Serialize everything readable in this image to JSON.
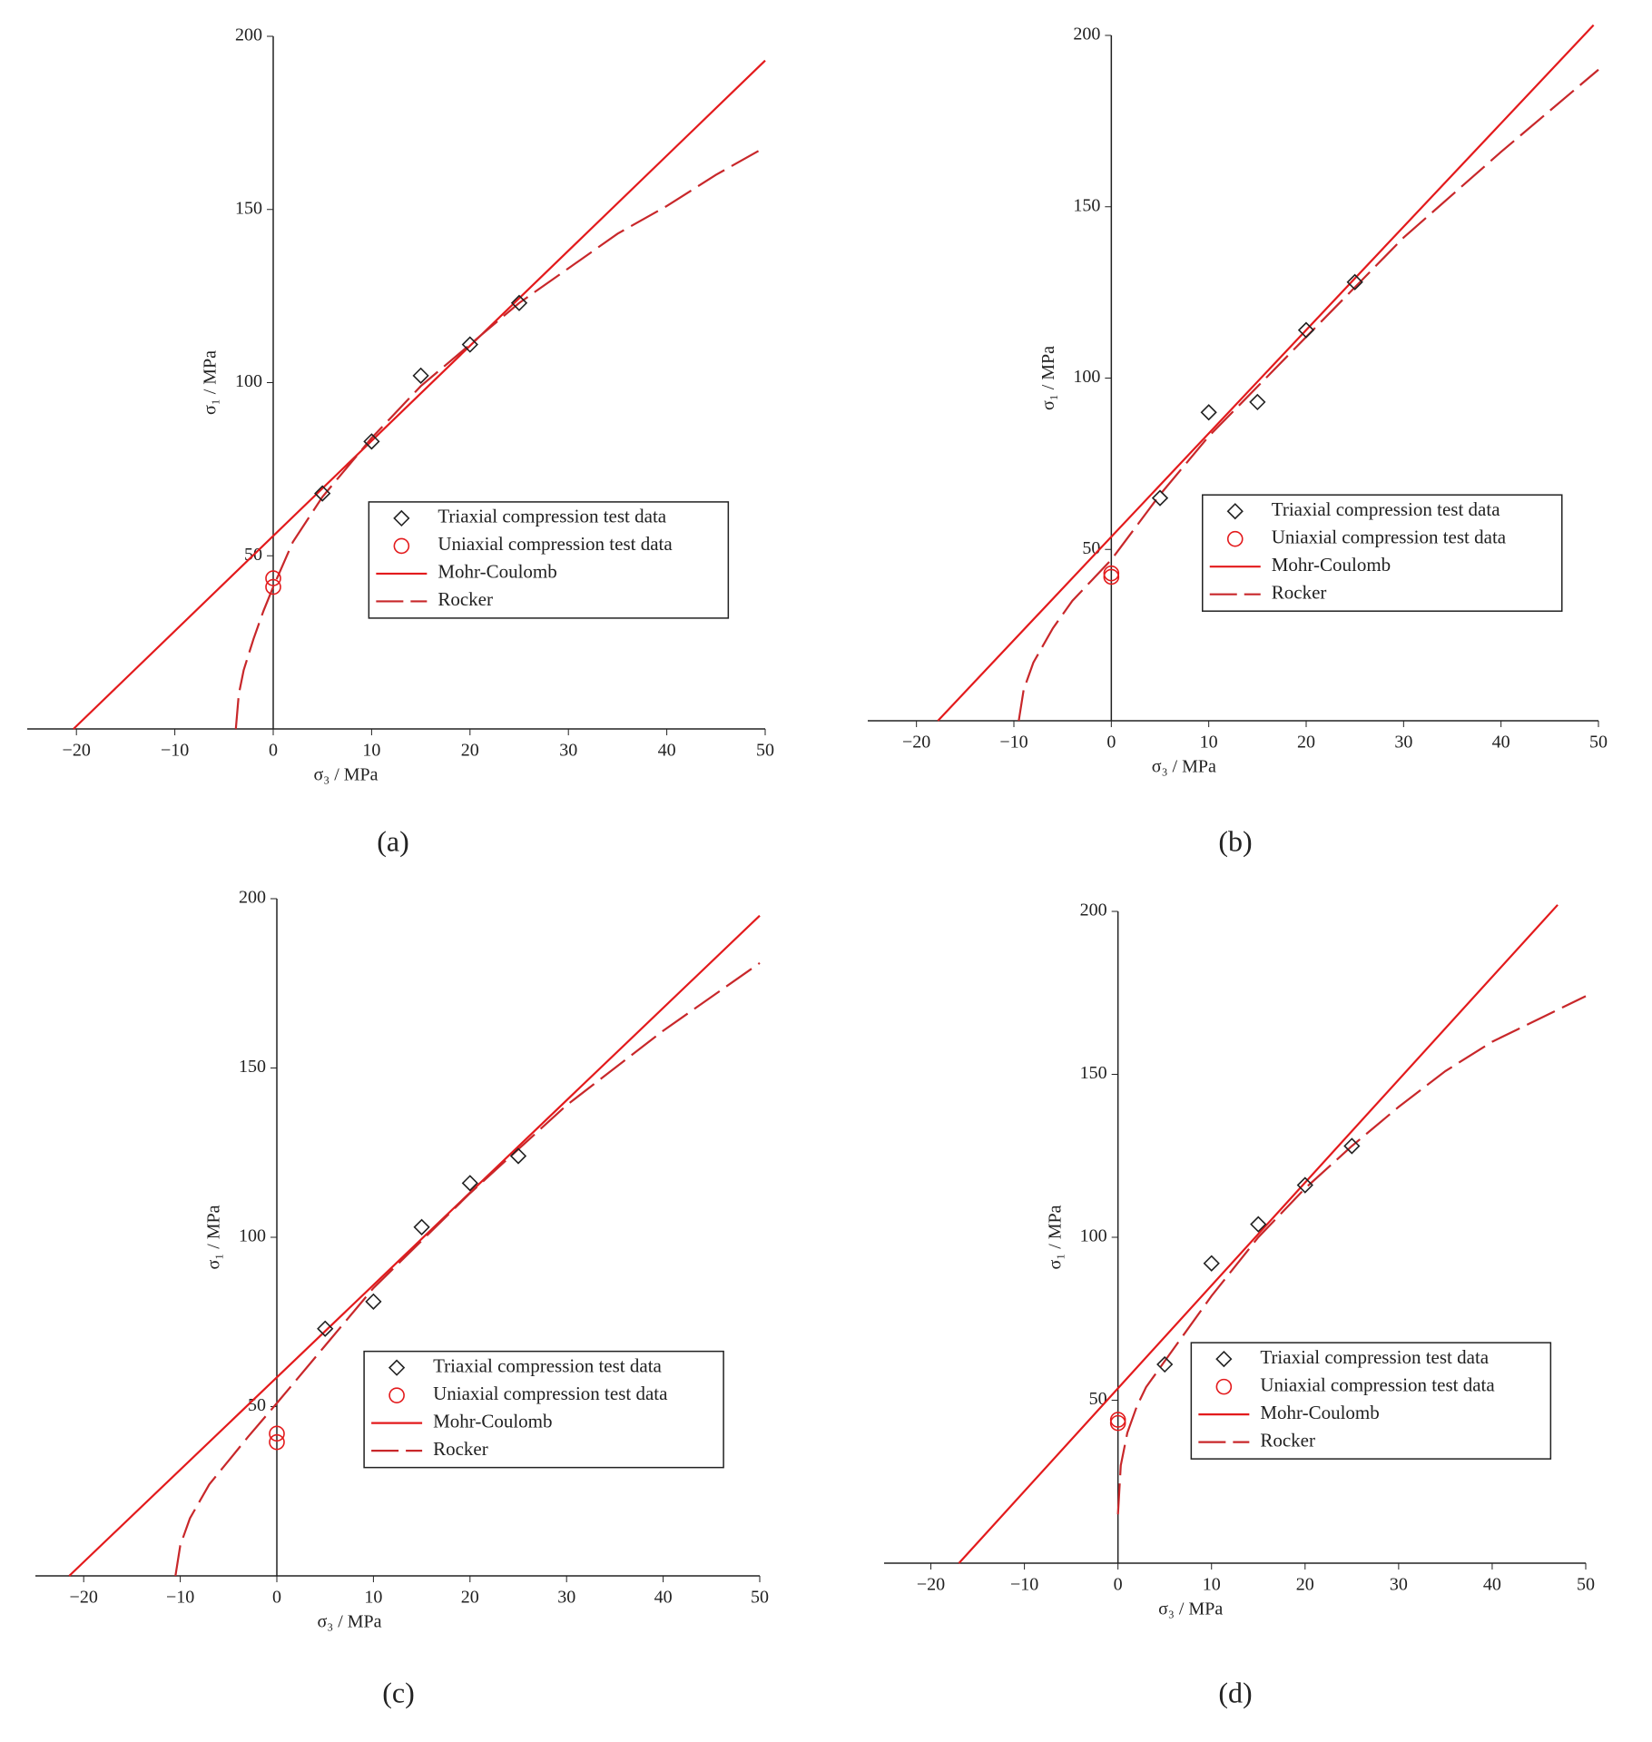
{
  "chart_data": [
    {
      "type": "scatter",
      "label": "(a)",
      "xlabel": "σ₃ / MPa",
      "ylabel": "σ₁ / MPa",
      "xlim": [
        -25,
        50
      ],
      "ylim": [
        0,
        200
      ],
      "xticks": [
        {
          "value": -20,
          "label": "−20"
        },
        {
          "value": -10,
          "label": "−10"
        },
        0,
        10,
        20,
        30,
        40,
        50
      ],
      "yticks": [
        50,
        100,
        150,
        200
      ],
      "legend": "lower right",
      "series": [
        {
          "name": "Triaxial compression test data",
          "color": "#222222",
          "marker": "diamond",
          "x": [
            5,
            10,
            15,
            20,
            25
          ],
          "values": [
            68,
            83,
            102,
            111,
            123
          ]
        },
        {
          "name": "Uniaxial compression test data",
          "color": "#e31a1c",
          "marker": "circle",
          "x": [
            0,
            0
          ],
          "values": [
            43.5,
            41
          ]
        },
        {
          "name": "Mohr-Coulomb",
          "color": "#e31a1c",
          "line": "solid",
          "x": [
            -20.3,
            50
          ],
          "values": [
            0,
            193
          ]
        },
        {
          "name": "Rocker",
          "color": "#c8272a",
          "line": "dashed",
          "x": [
            -3.8,
            -3.5,
            -3,
            -2,
            -1,
            0,
            2,
            5,
            10,
            15,
            20,
            25,
            30,
            35,
            40,
            45,
            50
          ],
          "values": [
            0,
            10,
            17,
            26,
            34,
            41,
            54,
            67,
            84,
            99,
            111,
            123,
            133,
            143,
            151,
            160,
            168
          ]
        }
      ]
    },
    {
      "type": "scatter",
      "label": "(b)",
      "xlabel": "σ₃ / MPa",
      "ylabel": "σ₁ / MPa",
      "xlim": [
        -25,
        50
      ],
      "ylim": [
        0,
        200
      ],
      "xticks": [
        {
          "value": -20,
          "label": "−20"
        },
        {
          "value": -10,
          "label": "−10"
        },
        0,
        10,
        20,
        30,
        40,
        50
      ],
      "yticks": [
        50,
        100,
        150,
        200
      ],
      "legend": "lower right",
      "series": [
        {
          "name": "Triaxial compression test data",
          "color": "#222222",
          "marker": "diamond",
          "x": [
            5,
            10,
            15,
            20,
            25
          ],
          "values": [
            65,
            90,
            93,
            114,
            128
          ]
        },
        {
          "name": "Uniaxial compression test data",
          "color": "#e31a1c",
          "marker": "circle",
          "x": [
            0,
            0
          ],
          "values": [
            43,
            42
          ]
        },
        {
          "name": "Mohr-Coulomb",
          "color": "#e31a1c",
          "line": "solid",
          "x": [
            -17.8,
            49.5
          ],
          "values": [
            0,
            203
          ]
        },
        {
          "name": "Rocker",
          "color": "#c8272a",
          "line": "dashed",
          "x": [
            -9.5,
            -9,
            -8,
            -6,
            -4,
            -2,
            0,
            5,
            10,
            20,
            30,
            40,
            50
          ],
          "values": [
            0,
            9,
            17,
            27,
            35,
            41,
            47,
            66,
            83,
            112,
            141,
            166,
            190
          ]
        }
      ]
    },
    {
      "type": "scatter",
      "label": "(c)",
      "xlabel": "σ₃ / MPa",
      "ylabel": "σ₁ / MPa",
      "xlim": [
        -25,
        50
      ],
      "ylim": [
        0,
        200
      ],
      "xticks": [
        {
          "value": -20,
          "label": "−20"
        },
        {
          "value": -10,
          "label": "−10"
        },
        0,
        10,
        20,
        30,
        40,
        50
      ],
      "yticks": [
        50,
        100,
        150,
        200
      ],
      "legend": "lower right",
      "series": [
        {
          "name": "Triaxial compression test data",
          "color": "#222222",
          "marker": "diamond",
          "x": [
            5,
            10,
            15,
            20,
            25
          ],
          "values": [
            73,
            81,
            103,
            116,
            124
          ]
        },
        {
          "name": "Uniaxial compression test data",
          "color": "#e31a1c",
          "marker": "circle",
          "x": [
            0,
            0
          ],
          "values": [
            42,
            39.5
          ]
        },
        {
          "name": "Mohr-Coulomb",
          "color": "#e31a1c",
          "line": "solid",
          "x": [
            -21.5,
            50
          ],
          "values": [
            0,
            195
          ]
        },
        {
          "name": "Rocker",
          "color": "#c8272a",
          "line": "dashed",
          "x": [
            -10.5,
            -10,
            -9,
            -7,
            -5,
            -3,
            0,
            5,
            10,
            20,
            30,
            40,
            50
          ],
          "values": [
            0,
            9,
            17,
            27,
            34,
            41,
            51,
            68,
            85,
            113,
            139,
            161,
            181
          ]
        }
      ]
    },
    {
      "type": "scatter",
      "label": "(d)",
      "xlabel": "σ₃ / MPa",
      "ylabel": "σ₁ / MPa",
      "xlim": [
        -25,
        50
      ],
      "ylim": [
        0,
        200
      ],
      "xticks": [
        {
          "value": -20,
          "label": "−20"
        },
        {
          "value": -10,
          "label": "−10"
        },
        0,
        10,
        20,
        30,
        40,
        50
      ],
      "yticks": [
        50,
        100,
        150,
        200
      ],
      "legend": "lower right",
      "series": [
        {
          "name": "Triaxial compression test data",
          "color": "#222222",
          "marker": "diamond",
          "x": [
            5,
            10,
            15,
            20,
            25
          ],
          "values": [
            61,
            92,
            104,
            116,
            128
          ]
        },
        {
          "name": "Uniaxial compression test data",
          "color": "#e31a1c",
          "marker": "circle",
          "x": [
            0,
            0
          ],
          "values": [
            44,
            43
          ]
        },
        {
          "name": "Mohr-Coulomb",
          "color": "#e31a1c",
          "line": "solid",
          "x": [
            -17,
            47
          ],
          "values": [
            0,
            202
          ]
        },
        {
          "name": "Rocker",
          "color": "#c8272a",
          "line": "dashed",
          "x": [
            0,
            0.3,
            1,
            2,
            3,
            5,
            7,
            10,
            15,
            20,
            25,
            30,
            35,
            40,
            50
          ],
          "values": [
            15,
            30,
            40,
            48,
            54,
            62,
            70,
            82,
            100,
            115,
            128,
            140,
            151,
            160,
            174
          ]
        }
      ]
    }
  ]
}
